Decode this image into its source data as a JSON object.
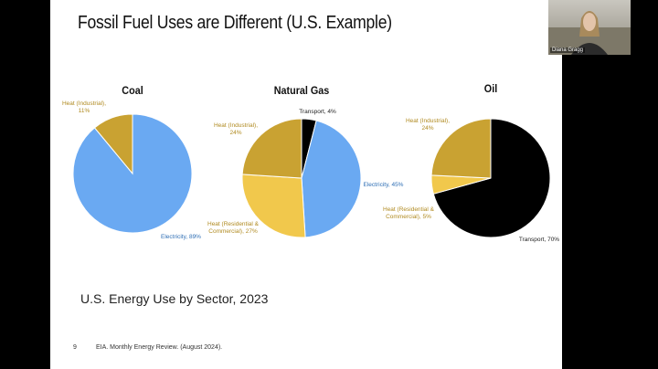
{
  "slide": {
    "title": "Fossil Fuel Uses are Different (U.S. Example)",
    "subtitle": "U.S. Energy Use by Sector, 2023",
    "page_number": "9",
    "source": "EIA. Monthly Energy Review. (August 2024)."
  },
  "webcam": {
    "name": "Diana Gragg"
  },
  "chart_data": [
    {
      "type": "pie",
      "title": "Coal",
      "values": [
        89,
        11
      ],
      "value_labels": [
        "Electricity, 89%",
        "Heat (Industrial), 11%"
      ],
      "colors": [
        "#6aa9f2",
        "#c9a232"
      ]
    },
    {
      "type": "pie",
      "title": "Natural Gas",
      "values": [
        4,
        45,
        27,
        24
      ],
      "value_labels": [
        "Transport, 4%",
        "Electricity, 45%",
        "Heat (Residential & Commercial), 27%",
        "Heat (Industrial), 24%"
      ],
      "colors": [
        "#000000",
        "#6aa9f2",
        "#f1c84c",
        "#c9a232"
      ]
    },
    {
      "type": "pie",
      "title": "Oil",
      "values": [
        70,
        5,
        24
      ],
      "value_labels": [
        "Transport, 70%",
        "Heat (Residential & Commercial), 5%",
        "Heat (Industrial), 24%"
      ],
      "colors": [
        "#000000",
        "#f1c84c",
        "#c9a232"
      ]
    }
  ]
}
